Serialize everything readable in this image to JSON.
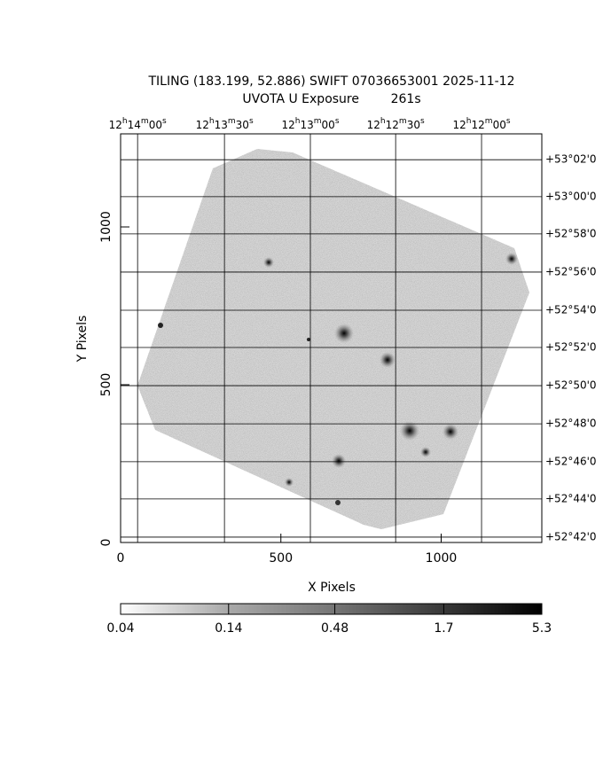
{
  "chart_data": {
    "type": "image",
    "title": "TILING (183.199, 52.886) SWIFT 07036653001 2025-11-12",
    "subtitle": "UVOTA U Exposure        261s",
    "x_label": "X Pixels",
    "y_label": "Y Pixels",
    "xlim": [
      0,
      1314
    ],
    "ylim": [
      0,
      1295
    ],
    "xticks": [
      0,
      500,
      1000
    ],
    "yticks": [
      0,
      500,
      1000
    ],
    "ra_ticks": [
      {
        "value": 53,
        "label": "12h14m00s"
      },
      {
        "value": 324,
        "label": "12h13m30s"
      },
      {
        "value": 592,
        "label": "12h13m00s"
      },
      {
        "value": 858,
        "label": "12h12m30s"
      },
      {
        "value": 1126,
        "label": "12h12m00s"
      }
    ],
    "dec_ticks": [
      {
        "value": 1213,
        "label": "+53°02'0"
      },
      {
        "value": 1096,
        "label": "+53°00'0"
      },
      {
        "value": 978,
        "label": "+52°58'0"
      },
      {
        "value": 857,
        "label": "+52°56'0"
      },
      {
        "value": 736,
        "label": "+52°54'0"
      },
      {
        "value": 618,
        "label": "+52°52'0"
      },
      {
        "value": 497,
        "label": "+52°50'0"
      },
      {
        "value": 376,
        "label": "+52°48'0"
      },
      {
        "value": 256,
        "label": "+52°46'0"
      },
      {
        "value": 138,
        "label": "+52°44'0"
      },
      {
        "value": 17,
        "label": "+52°42'0"
      }
    ],
    "colorbar": {
      "lim": [
        0.04,
        5.3
      ],
      "ticks": [
        0.04,
        0.14,
        0.48,
        1.7,
        5.3
      ],
      "log": true
    }
  }
}
